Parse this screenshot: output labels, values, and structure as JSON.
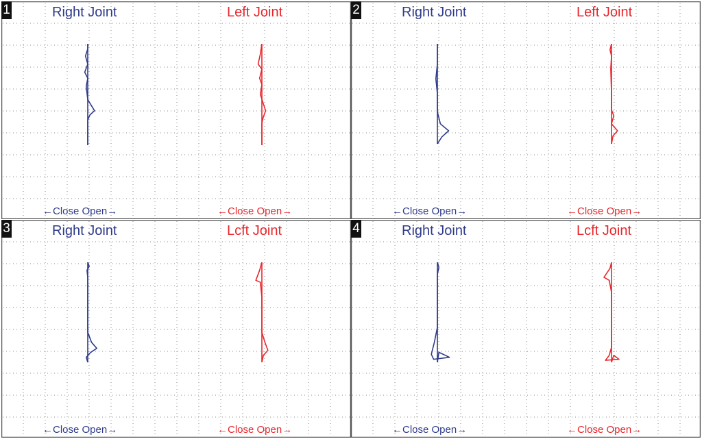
{
  "colors": {
    "right": "#2e3a8a",
    "left": "#e8262b",
    "grid": "#8a8a8a",
    "border": "#555555"
  },
  "axis_caption": "←Close  Open→",
  "chart_data": [
    {
      "type": "line",
      "panel": "1",
      "right_title": "Right Joint",
      "left_title": "Left Joint",
      "right_trace": [
        [
          0,
          0
        ],
        [
          0,
          0.05
        ],
        [
          -0.3,
          0.12
        ],
        [
          0,
          0.2
        ],
        [
          -0.4,
          0.28
        ],
        [
          0,
          0.34
        ],
        [
          -0.2,
          0.42
        ],
        [
          0,
          0.55
        ],
        [
          0.9,
          0.66
        ],
        [
          0.3,
          0.7
        ],
        [
          0,
          0.75
        ],
        [
          0,
          1
        ]
      ],
      "left_trace": [
        [
          0,
          0
        ],
        [
          -0.2,
          0.1
        ],
        [
          -0.5,
          0.2
        ],
        [
          0,
          0.25
        ],
        [
          -0.3,
          0.34
        ],
        [
          0,
          0.4
        ],
        [
          -0.2,
          0.5
        ],
        [
          0.5,
          0.66
        ],
        [
          0.2,
          0.72
        ],
        [
          0,
          0.78
        ],
        [
          0,
          1
        ]
      ]
    },
    {
      "type": "line",
      "panel": "2",
      "right_title": "Right Joint",
      "left_title": "Left Joint",
      "right_trace": [
        [
          0,
          0
        ],
        [
          0,
          0.2
        ],
        [
          -0.2,
          0.35
        ],
        [
          0,
          0.5
        ],
        [
          0,
          0.68
        ],
        [
          0.4,
          0.8
        ],
        [
          1.5,
          0.87
        ],
        [
          0.6,
          0.93
        ],
        [
          0,
          1
        ]
      ],
      "left_trace": [
        [
          0,
          0
        ],
        [
          -0.2,
          0.06
        ],
        [
          0,
          0.12
        ],
        [
          -0.1,
          0.25
        ],
        [
          0,
          0.5
        ],
        [
          0,
          0.66
        ],
        [
          0.3,
          0.72
        ],
        [
          0,
          0.8
        ],
        [
          0.8,
          0.87
        ],
        [
          0.2,
          0.92
        ],
        [
          0,
          1
        ]
      ]
    },
    {
      "type": "line",
      "panel": "3",
      "right_title": "Right Joint",
      "left_title": "Lcft Joint",
      "right_trace": [
        [
          0,
          0
        ],
        [
          0.2,
          0.04
        ],
        [
          -0.1,
          0.08
        ],
        [
          0,
          0.15
        ],
        [
          0,
          0.7
        ],
        [
          0.5,
          0.8
        ],
        [
          1.2,
          0.86
        ],
        [
          0.4,
          0.9
        ],
        [
          -0.2,
          0.95
        ],
        [
          0,
          1
        ]
      ],
      "left_trace": [
        [
          0,
          0
        ],
        [
          -0.3,
          0.08
        ],
        [
          -0.8,
          0.18
        ],
        [
          -0.2,
          0.2
        ],
        [
          0,
          0.35
        ],
        [
          0,
          0.7
        ],
        [
          0.4,
          0.8
        ],
        [
          0.8,
          0.88
        ],
        [
          0.2,
          0.93
        ],
        [
          0,
          1
        ]
      ]
    },
    {
      "type": "line",
      "panel": "4",
      "right_title": "Right Joint",
      "left_title": "Lcft Joint",
      "right_trace": [
        [
          0,
          0
        ],
        [
          0.2,
          0.05
        ],
        [
          0,
          0.12
        ],
        [
          0,
          0.65
        ],
        [
          -0.4,
          0.8
        ],
        [
          -0.8,
          0.92
        ],
        [
          -0.5,
          0.97
        ],
        [
          1.6,
          0.95
        ],
        [
          0.2,
          0.9
        ],
        [
          0,
          1
        ]
      ],
      "left_trace": [
        [
          0,
          0
        ],
        [
          -0.2,
          0.06
        ],
        [
          -1.0,
          0.15
        ],
        [
          -0.3,
          0.18
        ],
        [
          0,
          0.3
        ],
        [
          0,
          0.85
        ],
        [
          -0.3,
          0.93
        ],
        [
          -0.8,
          0.98
        ],
        [
          1.0,
          0.97
        ],
        [
          0.3,
          0.93
        ],
        [
          0,
          1
        ]
      ]
    }
  ]
}
